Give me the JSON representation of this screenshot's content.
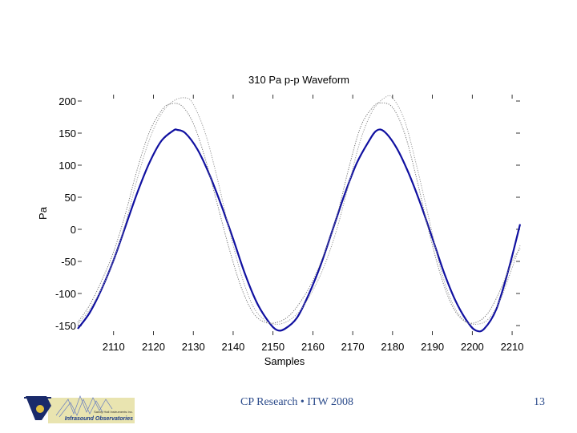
{
  "chart_data": {
    "type": "line",
    "title": "310 Pa p-p Waveform",
    "xlabel": "Samples",
    "ylabel": "Pa",
    "xlim": [
      2101,
      2212
    ],
    "ylim": [
      -165,
      210
    ],
    "xticks": [
      2110,
      2120,
      2130,
      2140,
      2150,
      2160,
      2170,
      2180,
      2190,
      2200,
      2210
    ],
    "yticks": [
      200,
      150,
      100,
      50,
      0,
      -50,
      -100,
      -150
    ],
    "grid": false,
    "series": [
      {
        "style": "solid",
        "color": "#1010a0",
        "x": [
          2101,
          2104,
          2107,
          2110,
          2113,
          2116,
          2119,
          2122,
          2125,
          2126,
          2128,
          2131,
          2134,
          2137,
          2140,
          2143,
          2146,
          2149,
          2151,
          2153,
          2156,
          2159,
          2162,
          2165,
          2168,
          2171,
          2174,
          2176,
          2178,
          2181,
          2184,
          2187,
          2190,
          2193,
          2196,
          2199,
          2201,
          2203,
          2206,
          2209,
          2212
        ],
        "y": [
          -155,
          -130,
          -93,
          -48,
          5,
          58,
          104,
          138,
          154,
          155,
          150,
          125,
          86,
          38,
          -15,
          -70,
          -115,
          -145,
          -157,
          -155,
          -138,
          -101,
          -55,
          0,
          55,
          103,
          137,
          154,
          152,
          127,
          88,
          40,
          -14,
          -69,
          -114,
          -146,
          -158,
          -155,
          -125,
          -65,
          8
        ]
      },
      {
        "style": "dotted",
        "color": "#999999",
        "x": [
          2101,
          2104,
          2107,
          2110,
          2113,
          2116,
          2119,
          2122,
          2125,
          2128,
          2130,
          2133,
          2136,
          2139,
          2142,
          2145,
          2148,
          2151,
          2154,
          2157,
          2160,
          2163,
          2166,
          2169,
          2172,
          2175,
          2178,
          2180,
          2183,
          2186,
          2189,
          2192,
          2195,
          2198,
          2201,
          2204,
          2207,
          2210,
          2212
        ],
        "y": [
          -148,
          -125,
          -92,
          -48,
          10,
          80,
          140,
          180,
          200,
          205,
          195,
          150,
          80,
          0,
          -70,
          -120,
          -142,
          -148,
          -142,
          -125,
          -95,
          -55,
          0,
          70,
          140,
          185,
          205,
          205,
          170,
          100,
          20,
          -60,
          -115,
          -142,
          -148,
          -140,
          -110,
          -60,
          -25
        ]
      },
      {
        "style": "dotted",
        "color": "#777777",
        "x": [
          2101,
          2104,
          2107,
          2110,
          2113,
          2116,
          2119,
          2122,
          2124,
          2127,
          2130,
          2133,
          2136,
          2139,
          2142,
          2145,
          2148,
          2151,
          2154,
          2157,
          2160,
          2163,
          2166,
          2169,
          2172,
          2175,
          2177,
          2180,
          2183,
          2186,
          2189,
          2192,
          2195,
          2198,
          2201,
          2204,
          2207,
          2210,
          2212
        ],
        "y": [
          -145,
          -118,
          -80,
          -35,
          25,
          95,
          152,
          185,
          195,
          193,
          165,
          110,
          40,
          -30,
          -90,
          -130,
          -145,
          -145,
          -135,
          -112,
          -80,
          -35,
          20,
          95,
          160,
          190,
          197,
          190,
          150,
          80,
          0,
          -70,
          -120,
          -143,
          -145,
          -130,
          -95,
          -50,
          -30
        ]
      }
    ]
  },
  "footer": {
    "text": "CP Research • ITW 2008",
    "page_number": "13"
  },
  "logo": {
    "line1": "Sandy Hall Instruments Inc.",
    "line2": "Infrasound Observatories"
  }
}
